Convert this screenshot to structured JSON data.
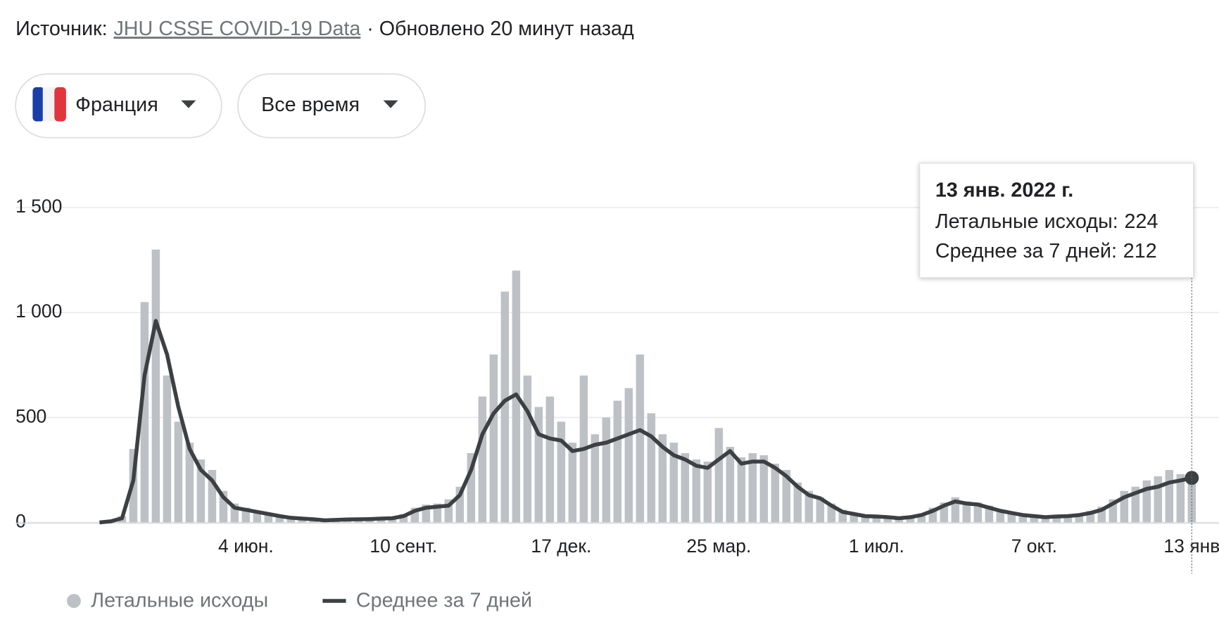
{
  "header": {
    "source_label": "Источник:",
    "source_link": "JHU CSSE COVID-19 Data",
    "updated": "· Обновлено 20 минут назад"
  },
  "filters": {
    "country": "Франция",
    "period": "Все время"
  },
  "tooltip": {
    "title": "13 янв. 2022 г.",
    "rows": [
      {
        "label": "Летальные исходы:"
      },
      {
        "label": "Среднее за 7 дней:"
      }
    ]
  },
  "chart_data": {
    "type": "combo",
    "categories": [
      null,
      null,
      null,
      null,
      null,
      null,
      null,
      null,
      null,
      null,
      null,
      null,
      null,
      null,
      null,
      null,
      null,
      null,
      null,
      null,
      null,
      null,
      null,
      null,
      null,
      null,
      null,
      null,
      null,
      null,
      null,
      null,
      null,
      null,
      null,
      null,
      null,
      null,
      null,
      null,
      null,
      null,
      null,
      null,
      null,
      null,
      null,
      null,
      null,
      null,
      null,
      null,
      null,
      null,
      null,
      null,
      null,
      null,
      null,
      null,
      null,
      null,
      null,
      null,
      null,
      null,
      null,
      null,
      null,
      null,
      null,
      null,
      null,
      null,
      null,
      null,
      null,
      null,
      null,
      null,
      null,
      null,
      null,
      null,
      null,
      null,
      null,
      null,
      null,
      null,
      null,
      null,
      null,
      null,
      null,
      null,
      null,
      null
    ],
    "series": [
      {
        "name": "Летальные исходы",
        "type": "bar",
        "color": "#bdc1c6",
        "values": [
          0,
          3,
          30,
          350,
          1050,
          1300,
          700,
          480,
          380,
          300,
          250,
          150,
          90,
          70,
          55,
          45,
          35,
          25,
          20,
          18,
          12,
          15,
          16,
          18,
          18,
          22,
          25,
          40,
          70,
          85,
          90,
          110,
          170,
          330,
          600,
          800,
          1100,
          1200,
          700,
          550,
          600,
          480,
          380,
          700,
          420,
          500,
          580,
          640,
          800,
          520,
          420,
          380,
          330,
          300,
          290,
          450,
          360,
          310,
          330,
          320,
          280,
          250,
          190,
          150,
          120,
          90,
          60,
          45,
          35,
          30,
          28,
          22,
          30,
          40,
          70,
          95,
          120,
          100,
          95,
          80,
          60,
          50,
          40,
          35,
          30,
          32,
          35,
          40,
          55,
          75,
          110,
          150,
          170,
          200,
          220,
          250,
          230,
          224
        ]
      },
      {
        "name": "Среднее за 7 дней",
        "type": "line",
        "color": "#3c4043",
        "values": [
          0,
          5,
          20,
          200,
          700,
          960,
          800,
          550,
          350,
          250,
          200,
          120,
          70,
          60,
          50,
          40,
          30,
          22,
          18,
          15,
          10,
          12,
          14,
          15,
          16,
          18,
          20,
          30,
          55,
          70,
          75,
          80,
          130,
          250,
          420,
          520,
          580,
          610,
          530,
          420,
          400,
          390,
          340,
          350,
          370,
          380,
          400,
          420,
          440,
          410,
          360,
          320,
          300,
          270,
          260,
          300,
          340,
          280,
          290,
          290,
          260,
          220,
          170,
          130,
          115,
          80,
          50,
          40,
          30,
          28,
          25,
          20,
          25,
          35,
          55,
          80,
          100,
          90,
          85,
          70,
          55,
          45,
          35,
          30,
          25,
          28,
          30,
          35,
          45,
          60,
          90,
          120,
          140,
          160,
          170,
          190,
          200,
          212
        ]
      }
    ],
    "ylim": [
      0,
      1500
    ],
    "yticks": [
      0,
      500,
      {
        "value": 1000,
        "label": "1 000"
      },
      {
        "value": 1500,
        "label": "1 500"
      }
    ],
    "xticks": [
      {
        "value": 13,
        "label": "4 июн."
      },
      {
        "value": 27,
        "label": "10 сент."
      },
      {
        "value": 41,
        "label": "17 дек."
      },
      {
        "value": 55,
        "label": "25 мар."
      },
      {
        "value": 69,
        "label": "1 июл."
      },
      {
        "value": 83,
        "label": "7 окт."
      },
      {
        "value": 97,
        "label": "13 янв"
      }
    ],
    "grid": true,
    "legend": "bottom"
  }
}
